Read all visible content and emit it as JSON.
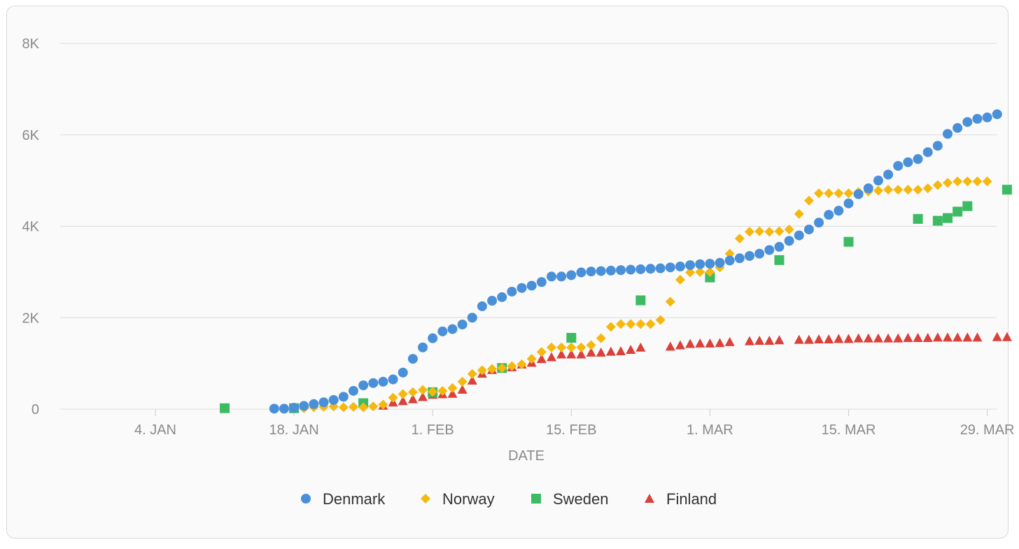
{
  "chart_data": {
    "type": "scatter",
    "xlabel": "DATE",
    "ylabel": "",
    "x_range": [
      "2021-12-29",
      "2022-03-31"
    ],
    "ylim": [
      0,
      8000
    ],
    "grid": true,
    "legend_position": "bottom-center",
    "y_ticks": [
      {
        "value": 0,
        "label": "0"
      },
      {
        "value": 2000,
        "label": "2K"
      },
      {
        "value": 4000,
        "label": "4K"
      },
      {
        "value": 6000,
        "label": "6K"
      },
      {
        "value": 8000,
        "label": "8K"
      }
    ],
    "x_ticks": [
      {
        "date": "2022-01-04",
        "label": "4. JAN"
      },
      {
        "date": "2022-01-18",
        "label": "18. JAN"
      },
      {
        "date": "2022-02-01",
        "label": "1. FEB"
      },
      {
        "date": "2022-02-15",
        "label": "15. FEB"
      },
      {
        "date": "2022-03-01",
        "label": "1. MAR"
      },
      {
        "date": "2022-03-15",
        "label": "15. MAR"
      },
      {
        "date": "2022-03-29",
        "label": "29. MAR"
      }
    ],
    "series": [
      {
        "name": "Denmark",
        "marker": "circle",
        "color": "#4a90d9",
        "points": [
          [
            "2022-01-16",
            10
          ],
          [
            "2022-01-17",
            10
          ],
          [
            "2022-01-18",
            30
          ],
          [
            "2022-01-19",
            70
          ],
          [
            "2022-01-20",
            110
          ],
          [
            "2022-01-21",
            150
          ],
          [
            "2022-01-22",
            200
          ],
          [
            "2022-01-23",
            270
          ],
          [
            "2022-01-24",
            400
          ],
          [
            "2022-01-25",
            520
          ],
          [
            "2022-01-26",
            570
          ],
          [
            "2022-01-27",
            600
          ],
          [
            "2022-01-28",
            650
          ],
          [
            "2022-01-29",
            800
          ],
          [
            "2022-01-30",
            1100
          ],
          [
            "2022-01-31",
            1350
          ],
          [
            "2022-02-01",
            1550
          ],
          [
            "2022-02-02",
            1700
          ],
          [
            "2022-02-03",
            1750
          ],
          [
            "2022-02-04",
            1850
          ],
          [
            "2022-02-05",
            2000
          ],
          [
            "2022-02-06",
            2250
          ],
          [
            "2022-02-07",
            2370
          ],
          [
            "2022-02-08",
            2450
          ],
          [
            "2022-02-09",
            2570
          ],
          [
            "2022-02-10",
            2650
          ],
          [
            "2022-02-11",
            2700
          ],
          [
            "2022-02-12",
            2780
          ],
          [
            "2022-02-13",
            2900
          ],
          [
            "2022-02-14",
            2900
          ],
          [
            "2022-02-15",
            2930
          ],
          [
            "2022-02-16",
            2990
          ],
          [
            "2022-02-17",
            3010
          ],
          [
            "2022-02-18",
            3020
          ],
          [
            "2022-02-19",
            3030
          ],
          [
            "2022-02-20",
            3040
          ],
          [
            "2022-02-21",
            3050
          ],
          [
            "2022-02-22",
            3060
          ],
          [
            "2022-02-23",
            3070
          ],
          [
            "2022-02-24",
            3080
          ],
          [
            "2022-02-25",
            3100
          ],
          [
            "2022-02-26",
            3120
          ],
          [
            "2022-02-27",
            3150
          ],
          [
            "2022-02-28",
            3170
          ],
          [
            "2022-03-01",
            3180
          ],
          [
            "2022-03-02",
            3200
          ],
          [
            "2022-03-03",
            3250
          ],
          [
            "2022-03-04",
            3300
          ],
          [
            "2022-03-05",
            3350
          ],
          [
            "2022-03-06",
            3400
          ],
          [
            "2022-03-07",
            3480
          ],
          [
            "2022-03-08",
            3550
          ],
          [
            "2022-03-09",
            3680
          ],
          [
            "2022-03-10",
            3800
          ],
          [
            "2022-03-11",
            3930
          ],
          [
            "2022-03-12",
            4080
          ],
          [
            "2022-03-13",
            4250
          ],
          [
            "2022-03-14",
            4340
          ],
          [
            "2022-03-15",
            4500
          ],
          [
            "2022-03-16",
            4700
          ],
          [
            "2022-03-17",
            4830
          ],
          [
            "2022-03-18",
            5000
          ],
          [
            "2022-03-19",
            5130
          ],
          [
            "2022-03-20",
            5320
          ],
          [
            "2022-03-21",
            5400
          ],
          [
            "2022-03-22",
            5470
          ],
          [
            "2022-03-23",
            5620
          ],
          [
            "2022-03-24",
            5760
          ],
          [
            "2022-03-25",
            6020
          ],
          [
            "2022-03-26",
            6150
          ],
          [
            "2022-03-27",
            6280
          ],
          [
            "2022-03-28",
            6350
          ],
          [
            "2022-03-29",
            6380
          ],
          [
            "2022-03-30",
            6450
          ]
        ]
      },
      {
        "name": "Norway",
        "marker": "diamond",
        "color": "#f5b80f",
        "points": [
          [
            "2022-01-19",
            20
          ],
          [
            "2022-01-20",
            40
          ],
          [
            "2022-01-21",
            50
          ],
          [
            "2022-01-22",
            60
          ],
          [
            "2022-01-23",
            40
          ],
          [
            "2022-01-24",
            50
          ],
          [
            "2022-01-25",
            40
          ],
          [
            "2022-01-26",
            60
          ],
          [
            "2022-01-27",
            100
          ],
          [
            "2022-01-28",
            250
          ],
          [
            "2022-01-29",
            330
          ],
          [
            "2022-01-30",
            370
          ],
          [
            "2022-01-31",
            420
          ],
          [
            "2022-02-01",
            380
          ],
          [
            "2022-02-02",
            400
          ],
          [
            "2022-02-03",
            460
          ],
          [
            "2022-02-04",
            600
          ],
          [
            "2022-02-05",
            770
          ],
          [
            "2022-02-06",
            850
          ],
          [
            "2022-02-07",
            880
          ],
          [
            "2022-02-08",
            900
          ],
          [
            "2022-02-09",
            940
          ],
          [
            "2022-02-10",
            980
          ],
          [
            "2022-02-11",
            1100
          ],
          [
            "2022-02-12",
            1250
          ],
          [
            "2022-02-13",
            1350
          ],
          [
            "2022-02-14",
            1350
          ],
          [
            "2022-02-15",
            1350
          ],
          [
            "2022-02-16",
            1350
          ],
          [
            "2022-02-17",
            1400
          ],
          [
            "2022-02-18",
            1550
          ],
          [
            "2022-02-19",
            1800
          ],
          [
            "2022-02-20",
            1860
          ],
          [
            "2022-02-21",
            1860
          ],
          [
            "2022-02-22",
            1860
          ],
          [
            "2022-02-23",
            1860
          ],
          [
            "2022-02-24",
            1950
          ],
          [
            "2022-02-25",
            2350
          ],
          [
            "2022-02-26",
            2830
          ],
          [
            "2022-02-27",
            2990
          ],
          [
            "2022-02-28",
            3000
          ],
          [
            "2022-03-01",
            3000
          ],
          [
            "2022-03-02",
            3100
          ],
          [
            "2022-03-03",
            3400
          ],
          [
            "2022-03-04",
            3730
          ],
          [
            "2022-03-05",
            3880
          ],
          [
            "2022-03-06",
            3890
          ],
          [
            "2022-03-07",
            3880
          ],
          [
            "2022-03-08",
            3890
          ],
          [
            "2022-03-09",
            3930
          ],
          [
            "2022-03-10",
            4270
          ],
          [
            "2022-03-11",
            4560
          ],
          [
            "2022-03-12",
            4720
          ],
          [
            "2022-03-13",
            4720
          ],
          [
            "2022-03-14",
            4720
          ],
          [
            "2022-03-15",
            4720
          ],
          [
            "2022-03-16",
            4750
          ],
          [
            "2022-03-17",
            4760
          ],
          [
            "2022-03-18",
            4780
          ],
          [
            "2022-03-19",
            4800
          ],
          [
            "2022-03-20",
            4800
          ],
          [
            "2022-03-21",
            4800
          ],
          [
            "2022-03-22",
            4800
          ],
          [
            "2022-03-23",
            4830
          ],
          [
            "2022-03-24",
            4900
          ],
          [
            "2022-03-25",
            4950
          ],
          [
            "2022-03-26",
            4980
          ],
          [
            "2022-03-27",
            4980
          ],
          [
            "2022-03-28",
            4980
          ],
          [
            "2022-03-29",
            4980
          ]
        ]
      },
      {
        "name": "Sweden",
        "marker": "square",
        "color": "#3dbb63",
        "points": [
          [
            "2022-01-11",
            20
          ],
          [
            "2022-01-18",
            20
          ],
          [
            "2022-01-25",
            130
          ],
          [
            "2022-02-01",
            370
          ],
          [
            "2022-02-08",
            900
          ],
          [
            "2022-02-15",
            1560
          ],
          [
            "2022-02-22",
            2380
          ],
          [
            "2022-03-01",
            2880
          ],
          [
            "2022-03-08",
            3260
          ],
          [
            "2022-03-15",
            3660
          ],
          [
            "2022-03-22",
            4160
          ],
          [
            "2022-03-24",
            4120
          ],
          [
            "2022-03-25",
            4180
          ],
          [
            "2022-03-26",
            4320
          ],
          [
            "2022-03-27",
            4440
          ],
          [
            "2022-03-31",
            4800
          ]
        ]
      },
      {
        "name": "Finland",
        "marker": "triangle",
        "color": "#d9413a",
        "points": [
          [
            "2022-01-27",
            80
          ],
          [
            "2022-01-28",
            150
          ],
          [
            "2022-01-29",
            180
          ],
          [
            "2022-01-30",
            220
          ],
          [
            "2022-01-31",
            270
          ],
          [
            "2022-02-01",
            320
          ],
          [
            "2022-02-02",
            330
          ],
          [
            "2022-02-03",
            340
          ],
          [
            "2022-02-04",
            430
          ],
          [
            "2022-02-05",
            630
          ],
          [
            "2022-02-06",
            780
          ],
          [
            "2022-02-07",
            860
          ],
          [
            "2022-02-08",
            900
          ],
          [
            "2022-02-09",
            920
          ],
          [
            "2022-02-10",
            980
          ],
          [
            "2022-02-11",
            1020
          ],
          [
            "2022-02-12",
            1100
          ],
          [
            "2022-02-13",
            1140
          ],
          [
            "2022-02-14",
            1200
          ],
          [
            "2022-02-15",
            1200
          ],
          [
            "2022-02-16",
            1200
          ],
          [
            "2022-02-17",
            1240
          ],
          [
            "2022-02-18",
            1240
          ],
          [
            "2022-02-19",
            1260
          ],
          [
            "2022-02-20",
            1270
          ],
          [
            "2022-02-21",
            1300
          ],
          [
            "2022-02-22",
            1350
          ],
          [
            "2022-02-25",
            1370
          ],
          [
            "2022-02-26",
            1400
          ],
          [
            "2022-02-27",
            1430
          ],
          [
            "2022-02-28",
            1440
          ],
          [
            "2022-03-01",
            1440
          ],
          [
            "2022-03-02",
            1450
          ],
          [
            "2022-03-03",
            1470
          ],
          [
            "2022-03-05",
            1490
          ],
          [
            "2022-03-06",
            1500
          ],
          [
            "2022-03-07",
            1500
          ],
          [
            "2022-03-08",
            1510
          ],
          [
            "2022-03-10",
            1520
          ],
          [
            "2022-03-11",
            1520
          ],
          [
            "2022-03-12",
            1530
          ],
          [
            "2022-03-13",
            1530
          ],
          [
            "2022-03-14",
            1540
          ],
          [
            "2022-03-15",
            1540
          ],
          [
            "2022-03-16",
            1550
          ],
          [
            "2022-03-17",
            1550
          ],
          [
            "2022-03-18",
            1550
          ],
          [
            "2022-03-19",
            1550
          ],
          [
            "2022-03-20",
            1550
          ],
          [
            "2022-03-21",
            1560
          ],
          [
            "2022-03-22",
            1560
          ],
          [
            "2022-03-23",
            1560
          ],
          [
            "2022-03-24",
            1570
          ],
          [
            "2022-03-25",
            1570
          ],
          [
            "2022-03-26",
            1570
          ],
          [
            "2022-03-27",
            1570
          ],
          [
            "2022-03-28",
            1570
          ],
          [
            "2022-03-30",
            1580
          ],
          [
            "2022-03-31",
            1580
          ]
        ]
      }
    ]
  }
}
